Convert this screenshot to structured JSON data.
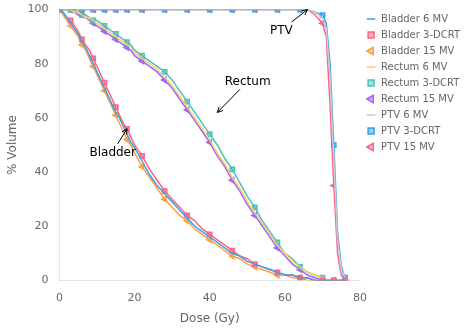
{
  "chart_data": {
    "type": "line",
    "xlabel": "Dose (Gy)",
    "ylabel": "% Volume",
    "xlim": [
      0,
      80
    ],
    "ylim": [
      0,
      100
    ],
    "xticks": [
      0,
      20,
      40,
      60,
      80
    ],
    "yticks": [
      0,
      20,
      40,
      60,
      80,
      100
    ],
    "grid": false,
    "legend": "upper right",
    "series": [
      {
        "name": "Bladder 6 MV",
        "marker": "none",
        "x": [
          0,
          1,
          2,
          3,
          4,
          5,
          6,
          7,
          8,
          9,
          10,
          11,
          12,
          13,
          14,
          15,
          16,
          17,
          18,
          19,
          20,
          22,
          24,
          26,
          28,
          30,
          32,
          34,
          36,
          38,
          40,
          42,
          44,
          46,
          48,
          50,
          52,
          54,
          56,
          58,
          60,
          62,
          64,
          66,
          68,
          70,
          71,
          72,
          73,
          74,
          75,
          76
        ],
        "values": [
          100,
          99,
          97,
          95,
          93,
          91,
          88,
          86,
          83,
          80,
          77,
          74,
          71,
          68,
          65,
          62,
          60,
          57,
          54,
          51,
          49,
          44,
          39,
          35,
          32,
          29,
          26,
          23,
          20,
          18,
          16,
          14,
          12,
          10,
          9,
          7,
          6,
          5,
          4,
          3,
          2,
          2,
          1,
          1,
          0,
          0,
          0,
          0,
          0,
          0,
          0,
          0
        ]
      },
      {
        "name": "Bladder 3-DCRT",
        "marker": "square",
        "x": [
          0,
          1,
          2,
          3,
          4,
          5,
          6,
          7,
          8,
          9,
          10,
          11,
          12,
          13,
          14,
          15,
          16,
          17,
          18,
          19,
          20,
          22,
          24,
          26,
          28,
          30,
          32,
          34,
          36,
          38,
          40,
          42,
          44,
          46,
          48,
          50,
          52,
          54,
          56,
          58,
          60,
          62,
          64,
          66,
          68,
          70,
          71,
          72,
          73,
          74,
          75,
          76
        ],
        "values": [
          100,
          99,
          97,
          96,
          94,
          92,
          89,
          87,
          85,
          82,
          79,
          76,
          73,
          70,
          67,
          64,
          61,
          58,
          56,
          53,
          50,
          46,
          41,
          37,
          33,
          30,
          27,
          24,
          22,
          19,
          17,
          15,
          13,
          11,
          9,
          8,
          6,
          5,
          4,
          3,
          2,
          2,
          1,
          1,
          0,
          0,
          0,
          0,
          0,
          0,
          0,
          0
        ]
      },
      {
        "name": "Bladder 15 MV",
        "marker": "triangle-left",
        "x": [
          0,
          1,
          2,
          3,
          4,
          5,
          6,
          7,
          8,
          9,
          10,
          11,
          12,
          13,
          14,
          15,
          16,
          17,
          18,
          19,
          20,
          22,
          24,
          26,
          28,
          30,
          32,
          34,
          36,
          38,
          40,
          42,
          44,
          46,
          48,
          50,
          52,
          54,
          56,
          58,
          60,
          62,
          64,
          66,
          68,
          70,
          71,
          72,
          73,
          74,
          75,
          76
        ],
        "values": [
          100,
          98,
          96,
          94,
          92,
          90,
          87,
          85,
          82,
          79,
          76,
          73,
          70,
          67,
          64,
          61,
          58,
          55,
          52,
          50,
          47,
          42,
          38,
          34,
          30,
          27,
          24,
          22,
          19,
          17,
          15,
          13,
          11,
          9,
          8,
          6,
          5,
          4,
          3,
          2,
          2,
          1,
          1,
          0,
          0,
          0,
          0,
          0,
          0,
          0,
          0,
          0
        ]
      },
      {
        "name": "Rectum 6 MV",
        "marker": "none",
        "x": [
          0,
          1,
          2,
          3,
          4,
          5,
          6,
          7,
          8,
          9,
          10,
          11,
          12,
          13,
          14,
          15,
          16,
          17,
          18,
          19,
          20,
          22,
          24,
          26,
          28,
          30,
          32,
          34,
          36,
          38,
          40,
          42,
          44,
          46,
          48,
          50,
          52,
          54,
          56,
          58,
          60,
          62,
          64,
          66,
          68,
          70,
          71,
          72,
          73,
          74,
          75,
          76
        ],
        "values": [
          100,
          100,
          100,
          100,
          99,
          99,
          98,
          97,
          97,
          96,
          95,
          94,
          93,
          92,
          91,
          90,
          89,
          88,
          87,
          86,
          84,
          82,
          80,
          78,
          75,
          72,
          68,
          64,
          60,
          56,
          52,
          47,
          43,
          38,
          34,
          29,
          25,
          21,
          17,
          13,
          10,
          7,
          5,
          3,
          2,
          1,
          0,
          0,
          0,
          0,
          0,
          0
        ]
      },
      {
        "name": "Rectum 3-DCRT",
        "marker": "square",
        "x": [
          0,
          1,
          2,
          3,
          4,
          5,
          6,
          7,
          8,
          9,
          10,
          11,
          12,
          13,
          14,
          15,
          16,
          17,
          18,
          19,
          20,
          22,
          24,
          26,
          28,
          30,
          32,
          34,
          36,
          38,
          40,
          42,
          44,
          46,
          48,
          50,
          52,
          54,
          56,
          58,
          60,
          62,
          64,
          66,
          68,
          70,
          71,
          72,
          73,
          74,
          75,
          76
        ],
        "values": [
          100,
          100,
          100,
          100,
          100,
          99,
          98,
          98,
          97,
          96,
          96,
          95,
          94,
          93,
          92,
          91,
          90,
          89,
          88,
          87,
          85,
          83,
          81,
          79,
          77,
          74,
          70,
          66,
          62,
          58,
          54,
          50,
          45,
          41,
          36,
          31,
          27,
          22,
          18,
          14,
          10,
          8,
          5,
          3,
          2,
          1,
          0,
          0,
          0,
          0,
          0,
          0
        ]
      },
      {
        "name": "Rectum 15 MV",
        "marker": "triangle-left",
        "x": [
          0,
          1,
          2,
          3,
          4,
          5,
          6,
          7,
          8,
          9,
          10,
          11,
          12,
          13,
          14,
          15,
          16,
          17,
          18,
          19,
          20,
          22,
          24,
          26,
          28,
          30,
          32,
          34,
          36,
          38,
          40,
          42,
          44,
          46,
          48,
          50,
          52,
          54,
          56,
          58,
          60,
          62,
          64,
          66,
          68,
          70,
          71,
          72,
          73,
          74,
          75,
          76
        ],
        "values": [
          100,
          100,
          100,
          100,
          99,
          98,
          98,
          97,
          96,
          95,
          94,
          93,
          92,
          91,
          90,
          89,
          88,
          87,
          86,
          85,
          83,
          81,
          79,
          77,
          74,
          71,
          67,
          63,
          59,
          55,
          51,
          46,
          42,
          37,
          33,
          28,
          24,
          20,
          16,
          12,
          9,
          6,
          4,
          2,
          1,
          0,
          0,
          0,
          0,
          0,
          0,
          0
        ]
      },
      {
        "name": "PTV 6 MV",
        "marker": "none",
        "x": [
          0,
          1,
          2,
          3,
          4,
          5,
          6,
          7,
          8,
          9,
          10,
          11,
          12,
          13,
          14,
          15,
          16,
          17,
          18,
          19,
          20,
          22,
          24,
          26,
          28,
          30,
          32,
          34,
          36,
          38,
          40,
          42,
          44,
          46,
          48,
          50,
          52,
          54,
          56,
          58,
          60,
          62,
          64,
          66,
          68,
          70,
          71,
          72,
          73,
          74,
          75,
          76,
          77
        ],
        "values": [
          100,
          100,
          100,
          100,
          100,
          100,
          100,
          100,
          100,
          100,
          100,
          100,
          100,
          100,
          100,
          100,
          100,
          100,
          100,
          100,
          100,
          100,
          100,
          100,
          100,
          100,
          100,
          100,
          100,
          100,
          100,
          100,
          100,
          100,
          100,
          100,
          100,
          100,
          100,
          100,
          100,
          100,
          100,
          100,
          99,
          97,
          93,
          75,
          45,
          15,
          4,
          1,
          0
        ]
      },
      {
        "name": "PTV 3-DCRT",
        "marker": "square",
        "x": [
          0,
          1,
          2,
          3,
          4,
          5,
          6,
          7,
          8,
          9,
          10,
          11,
          12,
          13,
          14,
          15,
          16,
          17,
          18,
          19,
          20,
          22,
          24,
          26,
          28,
          30,
          32,
          34,
          36,
          38,
          40,
          42,
          44,
          46,
          48,
          50,
          52,
          54,
          56,
          58,
          60,
          62,
          64,
          66,
          68,
          70,
          71,
          72,
          73,
          74,
          75,
          76,
          77
        ],
        "values": [
          100,
          100,
          100,
          100,
          100,
          100,
          100,
          100,
          100,
          100,
          100,
          100,
          100,
          100,
          100,
          100,
          100,
          100,
          100,
          100,
          100,
          100,
          100,
          100,
          100,
          100,
          100,
          100,
          100,
          100,
          100,
          100,
          100,
          100,
          100,
          100,
          100,
          100,
          100,
          100,
          100,
          100,
          100,
          100,
          99,
          98,
          95,
          80,
          50,
          18,
          5,
          1,
          0
        ]
      },
      {
        "name": "PTV 15 MV",
        "marker": "triangle-left",
        "x": [
          0,
          1,
          2,
          3,
          4,
          5,
          6,
          7,
          8,
          9,
          10,
          11,
          12,
          13,
          14,
          15,
          16,
          17,
          18,
          19,
          20,
          22,
          24,
          26,
          28,
          30,
          32,
          34,
          36,
          38,
          40,
          42,
          44,
          46,
          48,
          50,
          52,
          54,
          56,
          58,
          60,
          62,
          64,
          66,
          68,
          70,
          71,
          72,
          73,
          74,
          75,
          76,
          77
        ],
        "values": [
          100,
          100,
          100,
          100,
          100,
          100,
          100,
          100,
          100,
          100,
          100,
          100,
          100,
          100,
          100,
          100,
          100,
          100,
          100,
          100,
          100,
          100,
          100,
          100,
          100,
          100,
          100,
          100,
          100,
          100,
          100,
          100,
          100,
          100,
          100,
          100,
          100,
          100,
          100,
          100,
          100,
          100,
          100,
          100,
          98,
          95,
          90,
          65,
          35,
          10,
          2,
          0,
          0
        ]
      }
    ],
    "annotations": [
      {
        "text": "PTV",
        "x": 66,
        "y": 100,
        "text_x": 56,
        "text_y": 91
      },
      {
        "text": "Rectum",
        "x": 42,
        "y": 62,
        "text_x": 44,
        "text_y": 72
      },
      {
        "text": "Bladder",
        "x": 18,
        "y": 56,
        "text_x": 8,
        "text_y": 46
      }
    ]
  }
}
